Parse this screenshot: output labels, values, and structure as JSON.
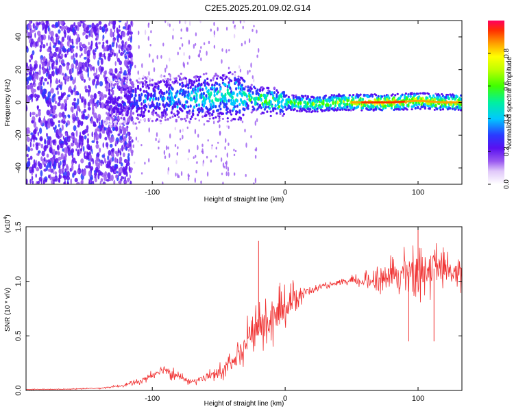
{
  "figure": {
    "title": "C2E5.2025.201.09.02.G14"
  },
  "colors": {
    "snr_line": "#f03030",
    "axis": "#000000",
    "colormap": [
      "#ffffff",
      "#e8d4fa",
      "#b890f0",
      "#7a2ae8",
      "#2a2aff",
      "#00c8ff",
      "#00ff80",
      "#a0ff00",
      "#ffff00",
      "#ffa000",
      "#ff2000"
    ]
  },
  "chart_data": [
    {
      "type": "heatmap",
      "xlabel": "Height of straight line (km)",
      "ylabel": "Frequency (Hz)",
      "xlim": [
        -195,
        133
      ],
      "ylim": [
        -50,
        50
      ],
      "x_ticks": [
        -100,
        0,
        100
      ],
      "y_ticks": [
        -40,
        -20,
        0,
        20,
        40
      ],
      "colorbar": {
        "label": "Normalized spectral amplitude",
        "range": [
          0,
          1
        ],
        "ticks": [
          "0.0",
          "0.2",
          "0.4",
          "0.6",
          "0.8"
        ]
      },
      "ridge": {
        "x": [
          -135,
          -120,
          -100,
          -80,
          -60,
          -40,
          -20,
          0,
          20,
          40,
          60,
          80,
          100,
          120,
          133
        ],
        "center_freq": [
          0,
          1,
          2,
          3,
          3,
          4,
          2,
          0,
          -1,
          0,
          0,
          0,
          1,
          0,
          0
        ],
        "peak_amplitude": [
          0.22,
          0.3,
          0.35,
          0.42,
          0.5,
          0.55,
          0.6,
          0.65,
          0.7,
          0.72,
          0.88,
          0.9,
          0.82,
          0.8,
          0.82
        ]
      }
    },
    {
      "type": "line",
      "xlabel": "Height of straight line (km)",
      "ylabel": "SNR (10 * v/v)",
      "y_scale_label": "(x10",
      "y_scale_exponent": "4",
      "y_scale_suffix": ")",
      "xlim": [
        -195,
        133
      ],
      "ylim": [
        0,
        1.5
      ],
      "x_ticks": [
        -100,
        0,
        100
      ],
      "y_ticks": [
        "0.0",
        "0.5",
        "1.0",
        "1.5"
      ],
      "series": [
        {
          "x": [
            -195,
            -170,
            -140,
            -125,
            -110,
            -100,
            -95,
            -90,
            -85,
            -80,
            -70,
            -60,
            -50,
            -40,
            -35,
            -30,
            -25,
            -20,
            -15,
            -10,
            -5,
            0,
            5,
            10,
            20,
            30,
            40,
            50,
            60,
            70,
            80,
            90,
            100,
            110,
            120,
            133
          ],
          "values": [
            0.01,
            0.01,
            0.02,
            0.04,
            0.08,
            0.14,
            0.18,
            0.2,
            0.16,
            0.12,
            0.08,
            0.12,
            0.16,
            0.24,
            0.3,
            0.42,
            0.55,
            0.58,
            0.6,
            0.64,
            0.7,
            0.78,
            0.82,
            0.88,
            0.92,
            0.96,
            0.98,
            1.0,
            1.0,
            1.02,
            1.05,
            1.08,
            1.1,
            1.12,
            1.1,
            1.05
          ],
          "noise_amplitude": [
            0.005,
            0.005,
            0.008,
            0.015,
            0.03,
            0.06,
            0.08,
            0.1,
            0.07,
            0.05,
            0.04,
            0.06,
            0.09,
            0.12,
            0.16,
            0.22,
            0.25,
            0.28,
            0.3,
            0.3,
            0.28,
            0.25,
            0.2,
            0.15,
            0.04,
            0.03,
            0.03,
            0.06,
            0.1,
            0.14,
            0.2,
            0.25,
            0.3,
            0.3,
            0.22,
            0.2
          ]
        }
      ],
      "spikes": [
        {
          "x": -20,
          "value": 1.37
        },
        {
          "x": 100,
          "value": 1.5
        },
        {
          "x": 93,
          "value": 0.45
        },
        {
          "x": 112,
          "value": 0.45
        }
      ]
    }
  ]
}
